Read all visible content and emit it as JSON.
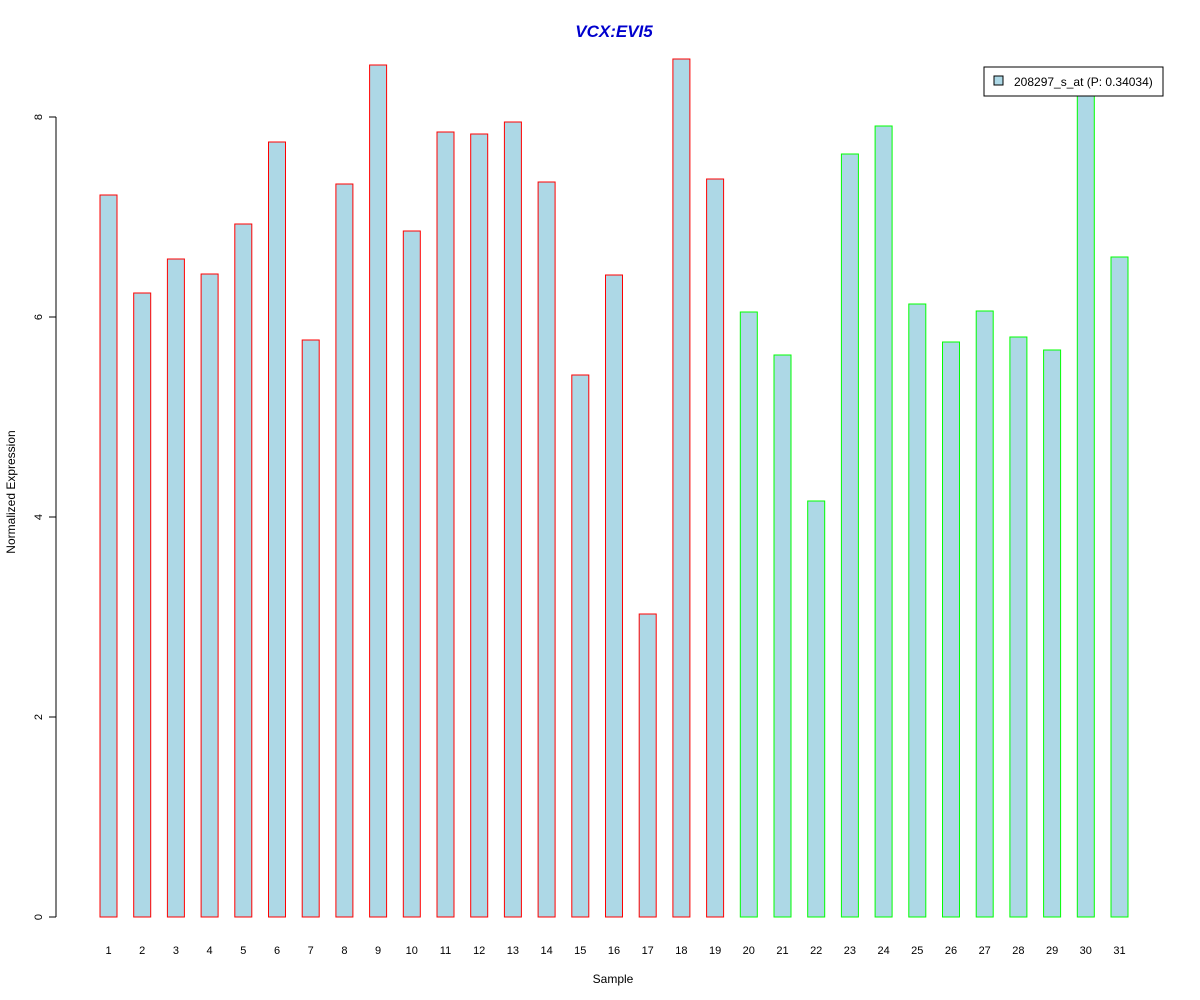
{
  "chart_data": {
    "type": "bar",
    "title": "VCX:EVI5",
    "xlabel": "Sample",
    "ylabel": "Normalized Expression",
    "categories": [
      "1",
      "2",
      "3",
      "4",
      "5",
      "6",
      "7",
      "8",
      "9",
      "10",
      "11",
      "12",
      "13",
      "14",
      "15",
      "16",
      "17",
      "18",
      "19",
      "20",
      "21",
      "22",
      "23",
      "24",
      "25",
      "26",
      "27",
      "28",
      "29",
      "30",
      "31"
    ],
    "series": [
      {
        "name": "208297_s_at (P: 0.34034)",
        "values": [
          7.22,
          6.24,
          6.58,
          6.43,
          6.93,
          7.75,
          5.77,
          7.33,
          8.52,
          6.86,
          7.85,
          7.83,
          7.95,
          7.35,
          5.42,
          6.42,
          3.03,
          8.58,
          7.38,
          6.05,
          5.62,
          4.16,
          7.63,
          7.91,
          6.13,
          5.75,
          6.06,
          5.8,
          5.67,
          8.22,
          6.6
        ]
      }
    ],
    "bar_groups": [
      "red",
      "red",
      "red",
      "red",
      "red",
      "red",
      "red",
      "red",
      "red",
      "red",
      "red",
      "red",
      "red",
      "red",
      "red",
      "red",
      "red",
      "red",
      "red",
      "green",
      "green",
      "green",
      "green",
      "green",
      "green",
      "green",
      "green",
      "green",
      "green",
      "green",
      "green"
    ],
    "ylim": [
      0,
      8.6
    ],
    "yticks": [
      0,
      2,
      4,
      6,
      8
    ],
    "grid": false,
    "legend_position": "top-right",
    "colors": {
      "bar_fill": "#add8e6",
      "border_red": "#ff0000",
      "border_green": "#00ff00",
      "title": "#0000cd",
      "axis": "#000000"
    }
  }
}
